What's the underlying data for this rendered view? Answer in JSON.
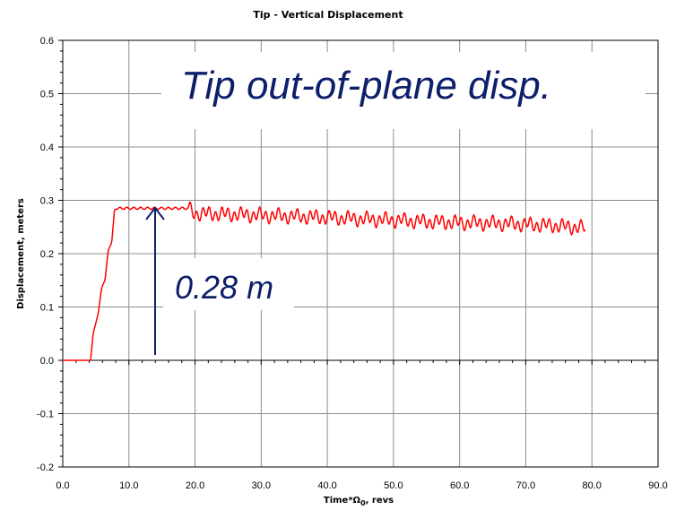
{
  "chart_data": {
    "type": "line",
    "title": "Tip - Vertical Displacement",
    "xlabel": "Time*Ω₀, revs",
    "xlabel_main": "Time*Ω",
    "xlabel_sub": "0",
    "xlabel_tail": ", revs",
    "ylabel": "Displacement, meters",
    "xlim": [
      0,
      90
    ],
    "ylim": [
      -0.2,
      0.6
    ],
    "xticks": [
      0,
      10,
      20,
      30,
      40,
      50,
      60,
      70,
      80,
      90
    ],
    "xtick_labels": [
      "0.0",
      "10.0",
      "20.0",
      "30.0",
      "40.0",
      "50.0",
      "60.0",
      "70.0",
      "80.0",
      "90.0"
    ],
    "yticks": [
      -0.2,
      -0.1,
      0.0,
      0.1,
      0.2,
      0.3,
      0.4,
      0.5,
      0.6
    ],
    "ytick_labels": [
      "-0.2",
      "-0.1",
      "0.0",
      "0.1",
      "0.2",
      "0.3",
      "0.4",
      "0.5",
      "0.6"
    ],
    "grid": true,
    "series": [
      {
        "color": "#ff0000",
        "x": [
          0,
          4.2,
          4.6,
          5.0,
          5.4,
          5.8,
          6.0,
          6.4,
          6.8,
          7.0,
          7.4,
          7.8,
          8.0,
          10,
          12,
          14,
          16,
          18,
          19,
          20,
          25,
          30,
          35,
          40,
          45,
          50,
          55,
          60,
          65,
          70,
          75,
          79
        ],
        "y": [
          0,
          0,
          0.05,
          0.07,
          0.09,
          0.13,
          0.14,
          0.15,
          0.2,
          0.21,
          0.22,
          0.28,
          0.285,
          0.285,
          0.285,
          0.285,
          0.285,
          0.285,
          0.285,
          0.275,
          0.274,
          0.272,
          0.27,
          0.268,
          0.265,
          0.263,
          0.26,
          0.258,
          0.257,
          0.255,
          0.252,
          0.248
        ],
        "oscillation_amplitude": 0.01,
        "oscillation_start": 19
      }
    ],
    "annotations": [
      {
        "text": "Tip out-of-plane disp."
      },
      {
        "text": "0.28 m"
      }
    ],
    "arrow_color": "#0d1f6b"
  }
}
